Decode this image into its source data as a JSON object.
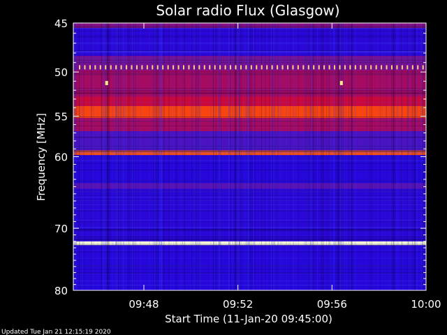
{
  "chart_data": {
    "type": "heatmap",
    "title": "Solar radio Flux (Glasgow)",
    "xlabel": "Start Time (11-Jan-20 09:45:00)",
    "ylabel": "Frequency [MHz]",
    "xlim": [
      "09:45",
      "10:00"
    ],
    "ylim": [
      45,
      80
    ],
    "y_scale": "log",
    "x_ticks": [
      "09:48",
      "09:52",
      "09:56",
      "10:00"
    ],
    "y_ticks": [
      45,
      50,
      55,
      60,
      70,
      80
    ],
    "colors": {
      "background": "#000000",
      "low": "#0000cc",
      "mid": "#cc0000",
      "high": "#ffffcc"
    },
    "bands": [
      {
        "freq_min": 45.0,
        "freq_max": 45.5,
        "level": 0.45
      },
      {
        "freq_min": 45.5,
        "freq_max": 48.3,
        "level": 0.12
      },
      {
        "freq_min": 48.3,
        "freq_max": 49.8,
        "level": 0.42
      },
      {
        "freq_min": 49.8,
        "freq_max": 52.7,
        "level": 0.52
      },
      {
        "freq_min": 52.7,
        "freq_max": 53.8,
        "level": 0.6
      },
      {
        "freq_min": 53.8,
        "freq_max": 55.2,
        "level": 0.82
      },
      {
        "freq_min": 55.2,
        "freq_max": 56.8,
        "level": 0.52
      },
      {
        "freq_min": 56.8,
        "freq_max": 59.2,
        "level": 0.3
      },
      {
        "freq_min": 59.2,
        "freq_max": 59.8,
        "level": 0.85
      },
      {
        "freq_min": 59.8,
        "freq_max": 63.5,
        "level": 0.1
      },
      {
        "freq_min": 63.5,
        "freq_max": 64.3,
        "level": 0.35
      },
      {
        "freq_min": 64.3,
        "freq_max": 72.0,
        "level": 0.12
      },
      {
        "freq_min": 72.0,
        "freq_max": 72.6,
        "level": 1.0
      },
      {
        "freq_min": 72.6,
        "freq_max": 80.0,
        "level": 0.1
      }
    ],
    "dotted_line_freq": 49.5,
    "bright_spots": [
      {
        "time": "09:46:25",
        "freq": 51.2
      },
      {
        "time": "09:56:24",
        "freq": 51.2
      }
    ]
  },
  "footer": {
    "updated": "Updated Tue Jan 21 12:15:19 2020"
  }
}
